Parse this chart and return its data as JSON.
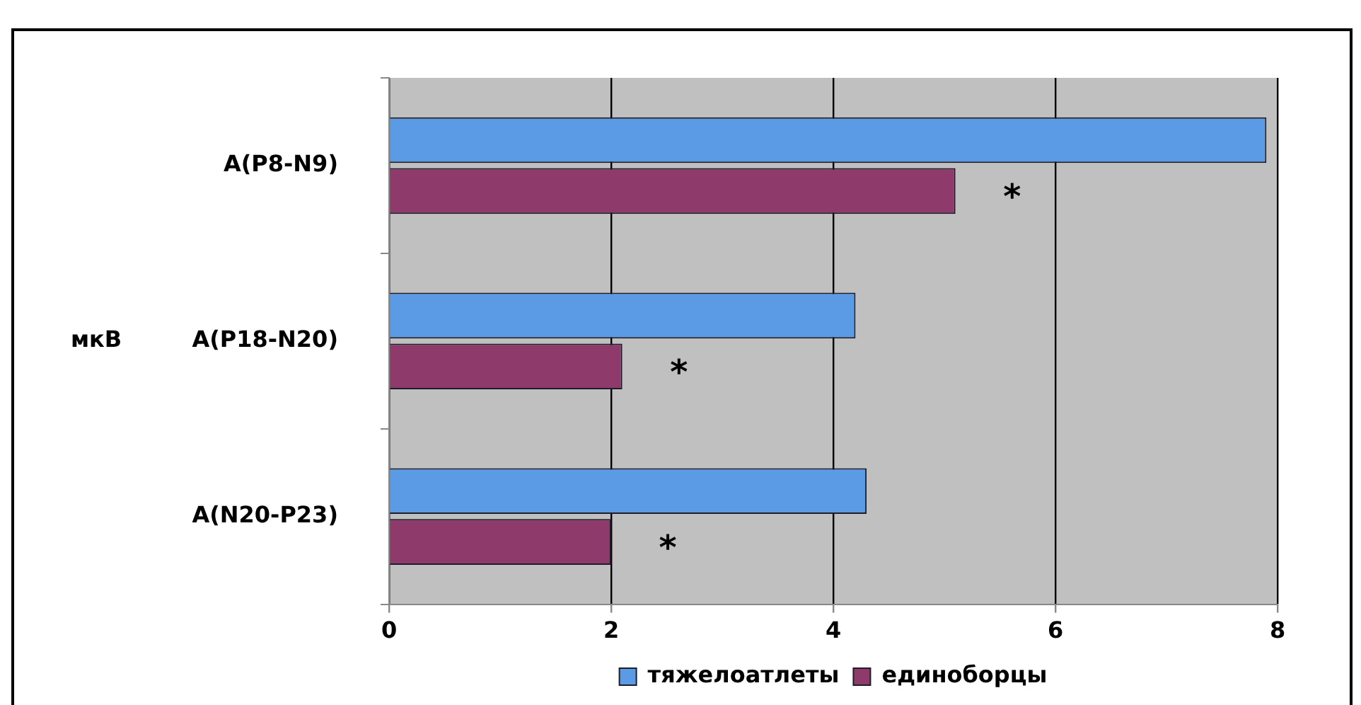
{
  "chart_data": {
    "type": "bar",
    "orientation": "horizontal",
    "ylabel": "мкВ",
    "categories": [
      "A(P8-N9)",
      "A(P18-N20)",
      "A(N20-P23)"
    ],
    "series": [
      {
        "name": "тяжелоатлеты",
        "color": "#5b9be6",
        "values": [
          7.9,
          4.2,
          4.3
        ]
      },
      {
        "name": "единоборцы",
        "color": "#8e3a6a",
        "values": [
          5.1,
          2.1,
          2.0
        ]
      }
    ],
    "xlim": [
      0,
      8
    ],
    "xticks": [
      0,
      2,
      4,
      6,
      8
    ],
    "grid": "x",
    "legend": "bottom",
    "annotations": [
      {
        "text": "*",
        "y": "A(P8-N9)"
      },
      {
        "text": "*",
        "y": "A(P18-N20)"
      },
      {
        "text": "*",
        "y": "A(N20-P23)"
      }
    ]
  }
}
